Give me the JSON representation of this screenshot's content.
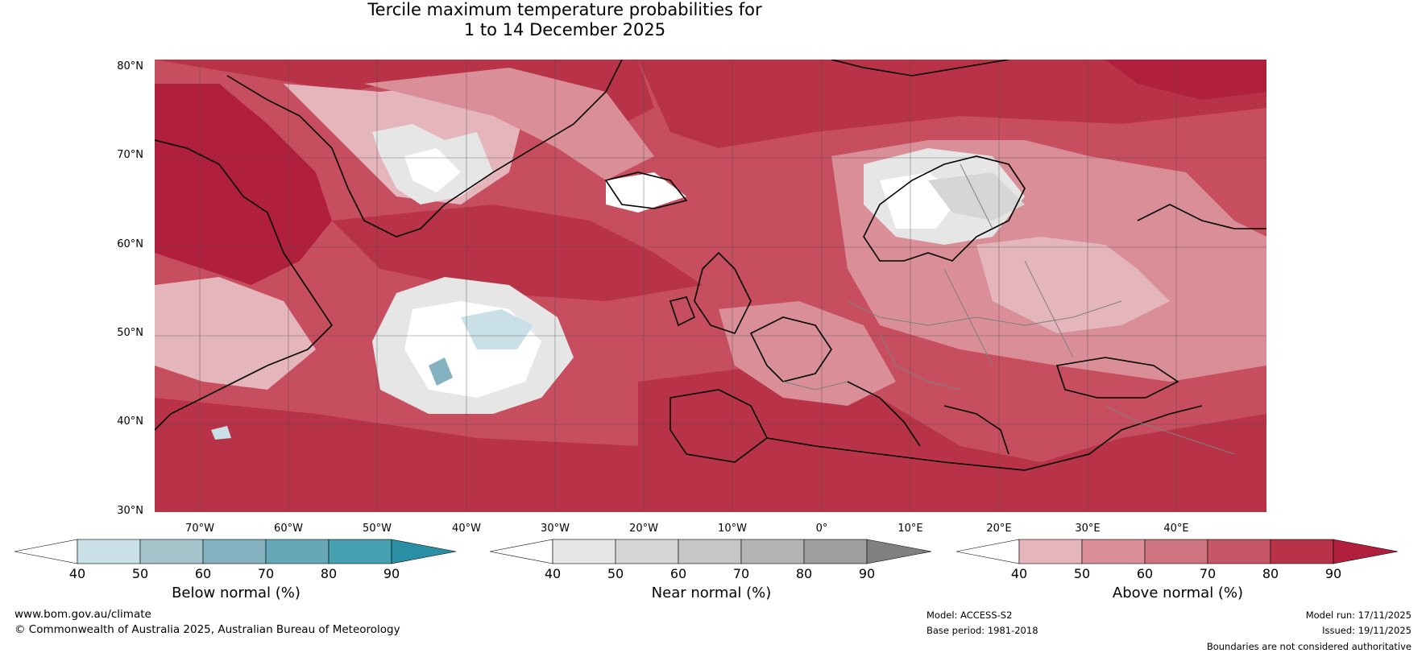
{
  "title": {
    "line1": "Tercile maximum temperature probabilities for",
    "line2": "1 to 14 December 2025"
  },
  "map": {
    "lat_labels": [
      "80°N",
      "70°N",
      "60°N",
      "50°N",
      "40°N",
      "30°N"
    ],
    "lon_labels": [
      "70°W",
      "60°W",
      "50°W",
      "40°W",
      "30°W",
      "20°W",
      "10°W",
      "0°",
      "10°E",
      "20°E",
      "30°E",
      "40°E"
    ],
    "base_color": "#c64e5e",
    "land_border_color": "#000000",
    "country_border_color": "#808080"
  },
  "colorbars": [
    {
      "title": "Below normal (%)",
      "ticks": [
        "40",
        "50",
        "60",
        "70",
        "80",
        "90"
      ],
      "colors": [
        "#ffffff",
        "#c9e0e6",
        "#a6c4cc",
        "#85b2c0",
        "#67a8b8",
        "#46a0b0",
        "#2a8ea4"
      ]
    },
    {
      "title": "Near normal (%)",
      "ticks": [
        "40",
        "50",
        "60",
        "70",
        "80",
        "90"
      ],
      "colors": [
        "#ffffff",
        "#e6e6e6",
        "#d6d6d6",
        "#c6c6c6",
        "#b4b4b4",
        "#9e9e9e",
        "#808080"
      ]
    },
    {
      "title": "Above normal (%)",
      "ticks": [
        "40",
        "50",
        "60",
        "70",
        "80",
        "90"
      ],
      "colors": [
        "#ffffff",
        "#e5b5bc",
        "#d98e98",
        "#cd7480",
        "#c65565",
        "#b83347",
        "#b01f3b"
      ]
    }
  ],
  "footer": {
    "website": "www.bom.gov.au/climate",
    "copyright": "© Commonwealth of Australia 2025, Australian Bureau of Meteorology",
    "model": "Model: ACCESS-S2",
    "base_period": "Base period: 1981-2018",
    "model_run": "Model run: 17/11/2025",
    "issued": "Issued: 19/11/2025",
    "disclaimer": "Boundaries are not considered authoritative"
  }
}
